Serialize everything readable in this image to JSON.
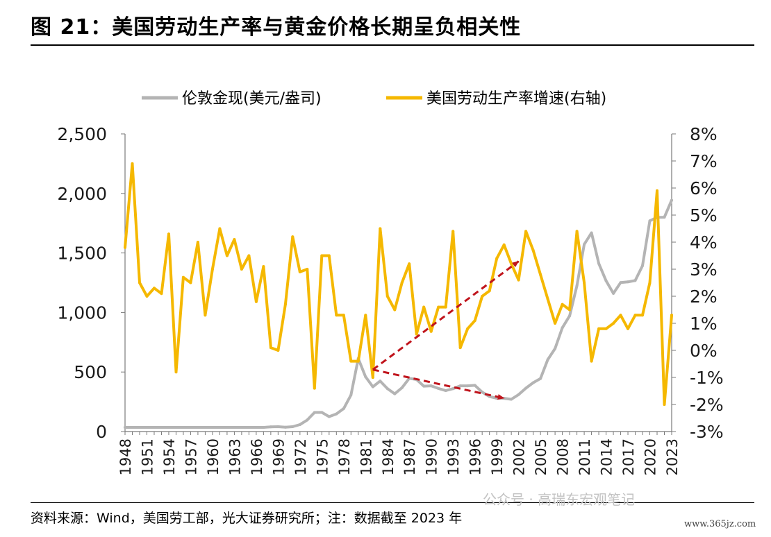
{
  "title": "图 21：美国劳动生产率与黄金价格长期呈负相关性",
  "source": "资料来源：Wind，美国劳工部，光大证券研究所；注：数据截至 2023 年",
  "watermark": "公众号 · 高瑞东宏观笔记",
  "watermark_url": "www.365jz.com",
  "colors": {
    "gold": "#b4b4b4",
    "productivity": "#f5b800",
    "arrow": "#c0141c"
  },
  "chart_data": {
    "type": "line",
    "x": [
      1948,
      1949,
      1950,
      1951,
      1952,
      1953,
      1954,
      1955,
      1956,
      1957,
      1958,
      1959,
      1960,
      1961,
      1962,
      1963,
      1964,
      1965,
      1966,
      1967,
      1968,
      1969,
      1970,
      1971,
      1972,
      1973,
      1974,
      1975,
      1976,
      1977,
      1978,
      1979,
      1980,
      1981,
      1982,
      1983,
      1984,
      1985,
      1986,
      1987,
      1988,
      1989,
      1990,
      1991,
      1992,
      1993,
      1994,
      1995,
      1996,
      1997,
      1998,
      1999,
      2000,
      2001,
      2002,
      2003,
      2004,
      2005,
      2006,
      2007,
      2008,
      2009,
      2010,
      2011,
      2012,
      2013,
      2014,
      2015,
      2016,
      2017,
      2018,
      2019,
      2020,
      2021,
      2022,
      2023
    ],
    "x_tick_labels": [
      "1948",
      "1951",
      "1954",
      "1957",
      "1960",
      "1963",
      "1966",
      "1969",
      "1972",
      "1975",
      "1978",
      "1981",
      "1984",
      "1987",
      "1990",
      "1993",
      "1996",
      "1999",
      "2002",
      "2005",
      "2008",
      "2011",
      "2014",
      "2017",
      "2020",
      "2023"
    ],
    "series": [
      {
        "name": "伦敦金现(美元/盎司)",
        "axis": "left",
        "values": [
          35,
          35,
          35,
          35,
          35,
          35,
          35,
          35,
          35,
          35,
          35,
          35,
          35,
          35,
          35,
          35,
          35,
          35,
          35,
          35,
          39,
          41,
          36,
          41,
          58,
          97,
          160,
          161,
          125,
          148,
          193,
          307,
          613,
          460,
          376,
          424,
          361,
          317,
          368,
          447,
          437,
          381,
          384,
          362,
          344,
          360,
          384,
          384,
          388,
          331,
          294,
          279,
          279,
          271,
          310,
          364,
          410,
          445,
          604,
          697,
          872,
          972,
          1225,
          1572,
          1669,
          1411,
          1266,
          1160,
          1251,
          1257,
          1268,
          1393,
          1770,
          1799,
          1800,
          1943
        ]
      },
      {
        "name": "美国劳动生产率增速(右轴)",
        "axis": "right",
        "values": [
          3.8,
          6.9,
          2.5,
          2.0,
          2.3,
          2.1,
          4.3,
          -0.8,
          2.7,
          2.5,
          4.0,
          1.3,
          3.0,
          4.5,
          3.5,
          4.1,
          3.0,
          3.5,
          1.8,
          3.1,
          0.1,
          0.0,
          1.7,
          4.2,
          2.9,
          3.0,
          -1.4,
          3.5,
          3.5,
          1.3,
          1.3,
          -0.4,
          -0.4,
          1.3,
          -1.0,
          4.5,
          2.0,
          1.5,
          2.5,
          3.2,
          0.6,
          1.6,
          0.7,
          1.6,
          1.6,
          4.4,
          0.1,
          0.8,
          1.1,
          2.0,
          2.2,
          3.4,
          3.9,
          3.2,
          2.6,
          4.4,
          3.7,
          2.8,
          1.9,
          1.0,
          1.7,
          1.5,
          4.4,
          2.5,
          -0.4,
          0.8,
          0.8,
          1.0,
          1.3,
          0.8,
          1.3,
          1.3,
          2.5,
          5.9,
          -2.0,
          1.3
        ]
      }
    ],
    "y_left": {
      "min": 0,
      "max": 2500,
      "ticks": [
        0,
        500,
        1000,
        1500,
        2000,
        2500
      ],
      "tick_labels": [
        "0",
        "500",
        "1,000",
        "1,500",
        "2,000",
        "2,500"
      ]
    },
    "y_right": {
      "min": -3,
      "max": 8,
      "ticks": [
        -3,
        -2,
        -1,
        0,
        1,
        2,
        3,
        4,
        5,
        6,
        7,
        8
      ],
      "tick_labels": [
        "-3%",
        "-2%",
        "-1%",
        "0%",
        "1%",
        "2%",
        "3%",
        "4%",
        "5%",
        "6%",
        "7%",
        "8%"
      ]
    },
    "legend_position": "top-center",
    "annotations": [
      {
        "type": "arrow",
        "axis": "left",
        "from": [
          1982,
          520
        ],
        "to": [
          2002,
          1430
        ]
      },
      {
        "type": "arrow",
        "axis": "left",
        "from": [
          1982,
          520
        ],
        "to": [
          2000,
          280
        ]
      }
    ]
  }
}
